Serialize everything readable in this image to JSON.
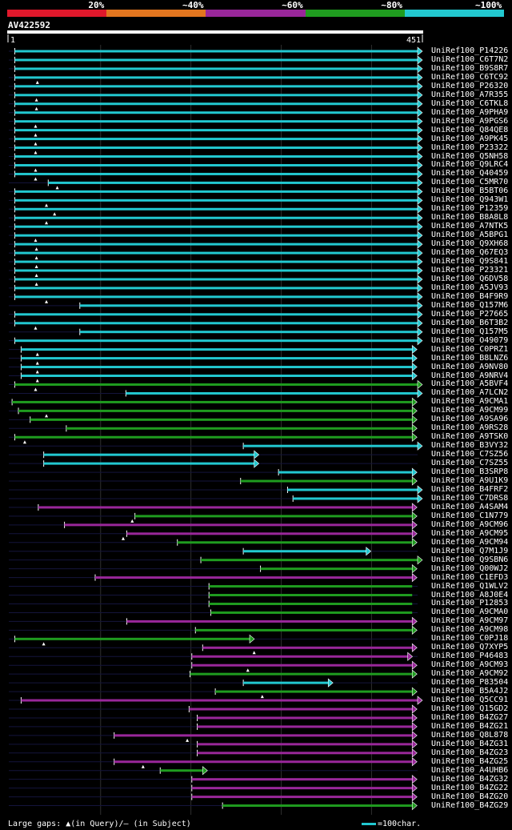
{
  "chart_data": {
    "type": "blast-alignment-overview",
    "query": "AV422592",
    "query_start": 1,
    "query_end": 451,
    "legend": [
      {
        "label": "20%",
        "color": "#e0182b"
      },
      {
        "label": "~40%",
        "color": "#e2761f"
      },
      {
        "label": "~60%",
        "color": "#99279a"
      },
      {
        "label": "~80%",
        "color": "#1f9c1f"
      },
      {
        "label": "~100%",
        "color": "#22c8d0"
      }
    ],
    "footer": {
      "gaps_label": "Large gaps: ▲(in Query)/— (in Subject)",
      "scale_label": "=100char."
    },
    "hits": [
      {
        "name": "UniRef100_P14226",
        "start": 5,
        "end": 451,
        "level": 4,
        "arrow": true,
        "gap": null
      },
      {
        "name": "UniRef100_C6T7N2",
        "start": 5,
        "end": 451,
        "level": 4,
        "arrow": true,
        "gap": null
      },
      {
        "name": "UniRef100_B9S8R7",
        "start": 5,
        "end": 451,
        "level": 4,
        "arrow": true,
        "gap": null
      },
      {
        "name": "UniRef100_C6TC92",
        "start": 5,
        "end": 451,
        "level": 4,
        "arrow": true,
        "gap": 30
      },
      {
        "name": "UniRef100_P26320",
        "start": 5,
        "end": 451,
        "level": 4,
        "arrow": true,
        "gap": null
      },
      {
        "name": "UniRef100_A7R355",
        "start": 5,
        "end": 451,
        "level": 4,
        "arrow": true,
        "gap": 29
      },
      {
        "name": "UniRef100_C6TKL8",
        "start": 5,
        "end": 451,
        "level": 4,
        "arrow": true,
        "gap": 29
      },
      {
        "name": "UniRef100_A9PHA9",
        "start": 5,
        "end": 451,
        "level": 4,
        "arrow": true,
        "gap": null
      },
      {
        "name": "UniRef100_A9PGS6",
        "start": 5,
        "end": 451,
        "level": 4,
        "arrow": true,
        "gap": 28
      },
      {
        "name": "UniRef100_Q84QE8",
        "start": 5,
        "end": 451,
        "level": 4,
        "arrow": true,
        "gap": 28
      },
      {
        "name": "UniRef100_A9PK45",
        "start": 5,
        "end": 451,
        "level": 4,
        "arrow": true,
        "gap": 28
      },
      {
        "name": "UniRef100_P23322",
        "start": 5,
        "end": 451,
        "level": 4,
        "arrow": true,
        "gap": 28
      },
      {
        "name": "UniRef100_Q5NH58",
        "start": 5,
        "end": 451,
        "level": 4,
        "arrow": true,
        "gap": null
      },
      {
        "name": "UniRef100_Q9LRC4",
        "start": 5,
        "end": 451,
        "level": 4,
        "arrow": true,
        "gap": 28
      },
      {
        "name": "UniRef100_Q40459",
        "start": 5,
        "end": 451,
        "level": 4,
        "arrow": true,
        "gap": 28
      },
      {
        "name": "UniRef100_C5MR70",
        "start": 42,
        "end": 451,
        "level": 4,
        "arrow": true,
        "gap": 52
      },
      {
        "name": "UniRef100_B5BT06",
        "start": 5,
        "end": 451,
        "level": 4,
        "arrow": true,
        "gap": null
      },
      {
        "name": "UniRef100_Q943W1",
        "start": 5,
        "end": 451,
        "level": 4,
        "arrow": true,
        "gap": 40
      },
      {
        "name": "UniRef100_P12359",
        "start": 5,
        "end": 451,
        "level": 4,
        "arrow": true,
        "gap": 49
      },
      {
        "name": "UniRef100_B8A8L8",
        "start": 5,
        "end": 451,
        "level": 4,
        "arrow": true,
        "gap": 40
      },
      {
        "name": "UniRef100_A7NTK5",
        "start": 5,
        "end": 451,
        "level": 4,
        "arrow": true,
        "gap": null
      },
      {
        "name": "UniRef100_A5BPG1",
        "start": 5,
        "end": 451,
        "level": 4,
        "arrow": true,
        "gap": 28
      },
      {
        "name": "UniRef100_Q9XH68",
        "start": 5,
        "end": 451,
        "level": 4,
        "arrow": true,
        "gap": 29
      },
      {
        "name": "UniRef100_Q67EQ3",
        "start": 5,
        "end": 451,
        "level": 4,
        "arrow": true,
        "gap": 29
      },
      {
        "name": "UniRef100_Q9S841",
        "start": 5,
        "end": 451,
        "level": 4,
        "arrow": true,
        "gap": 29
      },
      {
        "name": "UniRef100_P23321",
        "start": 5,
        "end": 451,
        "level": 4,
        "arrow": true,
        "gap": 29
      },
      {
        "name": "UniRef100_Q6DV58",
        "start": 5,
        "end": 451,
        "level": 4,
        "arrow": true,
        "gap": 29
      },
      {
        "name": "UniRef100_A5JV93",
        "start": 5,
        "end": 451,
        "level": 4,
        "arrow": true,
        "gap": null
      },
      {
        "name": "UniRef100_B4F9R9",
        "start": 5,
        "end": 451,
        "level": 4,
        "arrow": true,
        "gap": 40
      },
      {
        "name": "UniRef100_Q157M6",
        "start": 77,
        "end": 451,
        "level": 4,
        "arrow": true,
        "gap": null
      },
      {
        "name": "UniRef100_P27665",
        "start": 5,
        "end": 451,
        "level": 4,
        "arrow": true,
        "gap": null
      },
      {
        "name": "UniRef100_B6T3B2",
        "start": 5,
        "end": 451,
        "level": 4,
        "arrow": true,
        "gap": 28
      },
      {
        "name": "UniRef100_Q157M5",
        "start": 77,
        "end": 451,
        "level": 4,
        "arrow": true,
        "gap": null
      },
      {
        "name": "UniRef100_O49079",
        "start": 5,
        "end": 451,
        "level": 4,
        "arrow": true,
        "gap": null
      },
      {
        "name": "UniRef100_C0PRZ1",
        "start": 12,
        "end": 445,
        "level": 4,
        "arrow": true,
        "gap": 30
      },
      {
        "name": "UniRef100_B8LNZ6",
        "start": 12,
        "end": 445,
        "level": 4,
        "arrow": true,
        "gap": 30
      },
      {
        "name": "UniRef100_A9NV80",
        "start": 12,
        "end": 445,
        "level": 4,
        "arrow": true,
        "gap": 30
      },
      {
        "name": "UniRef100_A9NRV4",
        "start": 12,
        "end": 445,
        "level": 4,
        "arrow": true,
        "gap": 30
      },
      {
        "name": "UniRef100_A5BVF4",
        "start": 5,
        "end": 451,
        "level": 3,
        "arrow": true,
        "gap": 28
      },
      {
        "name": "UniRef100_A7LCN2",
        "start": 128,
        "end": 451,
        "level": 4,
        "arrow": true,
        "gap": null
      },
      {
        "name": "UniRef100_A9CMA1",
        "start": 2,
        "end": 445,
        "level": 3,
        "arrow": true,
        "gap": null
      },
      {
        "name": "UniRef100_A9CM99",
        "start": 9,
        "end": 445,
        "level": 3,
        "arrow": true,
        "gap": 40
      },
      {
        "name": "UniRef100_A9SA96",
        "start": 22,
        "end": 445,
        "level": 3,
        "arrow": true,
        "gap": null
      },
      {
        "name": "UniRef100_A9RS28",
        "start": 62,
        "end": 445,
        "level": 3,
        "arrow": true,
        "gap": null
      },
      {
        "name": "UniRef100_A9TSK0",
        "start": 5,
        "end": 445,
        "level": 3,
        "arrow": true,
        "gap": 16
      },
      {
        "name": "UniRef100_B3VY32",
        "start": 258,
        "end": 451,
        "level": 4,
        "arrow": true,
        "gap": null
      },
      {
        "name": "UniRef100_C7SZ56",
        "start": 37,
        "end": 270,
        "level": 4,
        "arrow": true,
        "gap": null
      },
      {
        "name": "UniRef100_C7SZ55",
        "start": 37,
        "end": 270,
        "level": 4,
        "arrow": true,
        "gap": null
      },
      {
        "name": "UniRef100_B3SRP8",
        "start": 297,
        "end": 445,
        "level": 4,
        "arrow": true,
        "gap": null
      },
      {
        "name": "UniRef100_A9U1K9",
        "start": 255,
        "end": 445,
        "level": 3,
        "arrow": true,
        "gap": null
      },
      {
        "name": "UniRef100_B4FRF2",
        "start": 307,
        "end": 451,
        "level": 4,
        "arrow": true,
        "gap": null
      },
      {
        "name": "UniRef100_C7DRS8",
        "start": 313,
        "end": 451,
        "level": 4,
        "arrow": true,
        "gap": null
      },
      {
        "name": "UniRef100_A4SAM4",
        "start": 31,
        "end": 445,
        "level": 2,
        "arrow": true,
        "gap": null
      },
      {
        "name": "UniRef100_C1N779",
        "start": 138,
        "end": 445,
        "level": 3,
        "arrow": true,
        "gap": 135
      },
      {
        "name": "UniRef100_A9CM96",
        "start": 60,
        "end": 445,
        "level": 2,
        "arrow": true,
        "gap": null
      },
      {
        "name": "UniRef100_A9CM95",
        "start": 129,
        "end": 445,
        "level": 2,
        "arrow": true,
        "gap": 125
      },
      {
        "name": "UniRef100_A9CM94",
        "start": 185,
        "end": 445,
        "level": 3,
        "arrow": true,
        "gap": null
      },
      {
        "name": "UniRef100_Q7M1J9",
        "start": 258,
        "end": 394,
        "level": 4,
        "arrow": true,
        "gap": null
      },
      {
        "name": "UniRef100_Q9SBN6",
        "start": 211,
        "end": 451,
        "level": 3,
        "arrow": true,
        "gap": null
      },
      {
        "name": "UniRef100_Q00WJ2",
        "start": 277,
        "end": 445,
        "level": 3,
        "arrow": true,
        "gap": null
      },
      {
        "name": "UniRef100_C1EFD3",
        "start": 94,
        "end": 445,
        "level": 2,
        "arrow": true,
        "gap": null
      },
      {
        "name": "UniRef100_Q1WLV2",
        "start": 220,
        "end": 445,
        "level": 3,
        "arrow": false,
        "gap": null
      },
      {
        "name": "UniRef100_A8J0E4",
        "start": 220,
        "end": 445,
        "level": 3,
        "arrow": false,
        "gap": null
      },
      {
        "name": "UniRef100_P12853",
        "start": 220,
        "end": 445,
        "level": 3,
        "arrow": false,
        "gap": null
      },
      {
        "name": "UniRef100_A9CMA0",
        "start": 222,
        "end": 445,
        "level": 3,
        "arrow": false,
        "gap": null
      },
      {
        "name": "UniRef100_A9CM97",
        "start": 129,
        "end": 445,
        "level": 2,
        "arrow": true,
        "gap": null
      },
      {
        "name": "UniRef100_A9CM98",
        "start": 205,
        "end": 445,
        "level": 3,
        "arrow": true,
        "gap": null
      },
      {
        "name": "UniRef100_C0PJ18",
        "start": 5,
        "end": 265,
        "level": 3,
        "arrow": true,
        "gap": 37
      },
      {
        "name": "UniRef100_Q7XYP5",
        "start": 213,
        "end": 445,
        "level": 2,
        "arrow": true,
        "gap": 270
      },
      {
        "name": "UniRef100_P46483",
        "start": 201,
        "end": 440,
        "level": 2,
        "arrow": true,
        "gap": null
      },
      {
        "name": "UniRef100_A9CM93",
        "start": 201,
        "end": 445,
        "level": 2,
        "arrow": true,
        "gap": 263
      },
      {
        "name": "UniRef100_A9CM92",
        "start": 199,
        "end": 445,
        "level": 3,
        "arrow": true,
        "gap": null
      },
      {
        "name": "UniRef100_P83504",
        "start": 258,
        "end": 352,
        "level": 4,
        "arrow": true,
        "gap": null
      },
      {
        "name": "UniRef100_B5A4J2",
        "start": 227,
        "end": 445,
        "level": 3,
        "arrow": true,
        "gap": 279
      },
      {
        "name": "UniRef100_Q5CC91",
        "start": 12,
        "end": 451,
        "level": 2,
        "arrow": true,
        "gap": null
      },
      {
        "name": "UniRef100_Q15GD2",
        "start": 198,
        "end": 445,
        "level": 2,
        "arrow": true,
        "gap": null
      },
      {
        "name": "UniRef100_B4ZG27",
        "start": 207,
        "end": 445,
        "level": 2,
        "arrow": true,
        "gap": null
      },
      {
        "name": "UniRef100_B4ZG21",
        "start": 207,
        "end": 445,
        "level": 2,
        "arrow": true,
        "gap": null
      },
      {
        "name": "UniRef100_Q8L878",
        "start": 115,
        "end": 445,
        "level": 2,
        "arrow": true,
        "gap": 196
      },
      {
        "name": "UniRef100_B4ZG31",
        "start": 207,
        "end": 445,
        "level": 2,
        "arrow": true,
        "gap": null
      },
      {
        "name": "UniRef100_B4ZG23",
        "start": 207,
        "end": 445,
        "level": 2,
        "arrow": true,
        "gap": null
      },
      {
        "name": "UniRef100_B4ZG25",
        "start": 115,
        "end": 445,
        "level": 2,
        "arrow": true,
        "gap": 147
      },
      {
        "name": "UniRef100_A4UHB6",
        "start": 166,
        "end": 213,
        "level": 3,
        "arrow": true,
        "gap": null
      },
      {
        "name": "UniRef100_B4ZG32",
        "start": 201,
        "end": 445,
        "level": 2,
        "arrow": true,
        "gap": null
      },
      {
        "name": "UniRef100_B4ZG22",
        "start": 201,
        "end": 445,
        "level": 2,
        "arrow": true,
        "gap": null
      },
      {
        "name": "UniRef100_B4ZG20",
        "start": 201,
        "end": 445,
        "level": 2,
        "arrow": true,
        "gap": null
      },
      {
        "name": "UniRef100_B4ZG29",
        "start": 235,
        "end": 445,
        "level": 3,
        "arrow": true,
        "gap": null
      }
    ]
  }
}
